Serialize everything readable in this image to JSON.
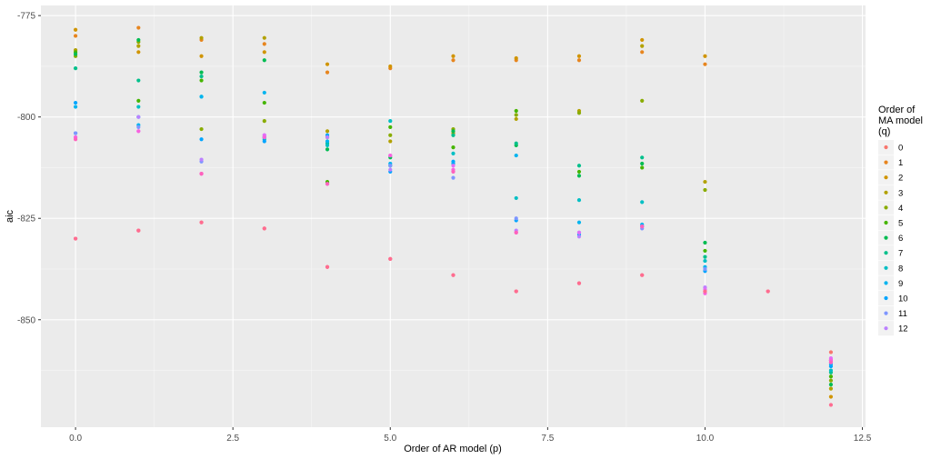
{
  "chart_data": {
    "type": "scatter",
    "title": "",
    "xlabel": "Order of AR model (p)",
    "ylabel": "aic",
    "xlim": [
      -0.55,
      12.55
    ],
    "ylim": [
      -876.5,
      -772.5
    ],
    "x_ticks": [
      0.0,
      2.5,
      5.0,
      7.5,
      10.0,
      12.5
    ],
    "x_tick_labels": [
      "0.0",
      "2.5",
      "5.0",
      "7.5",
      "10.0",
      "12.5"
    ],
    "y_ticks": [
      -775,
      -800,
      -825,
      -850
    ],
    "y_tick_labels": [
      "-775",
      "-800",
      "-825",
      "-850"
    ],
    "grid": true,
    "legend": {
      "title_lines": [
        "Order of",
        "MA model",
        "(q)"
      ],
      "position": "right"
    },
    "series": [
      {
        "name": "0",
        "color": "#F8766D",
        "points": [
          [
            0,
            -830
          ],
          [
            1,
            -828
          ],
          [
            2,
            -826
          ],
          [
            3,
            -827.5
          ],
          [
            4,
            -837
          ],
          [
            5,
            -835
          ],
          [
            6,
            -839
          ],
          [
            7,
            -843
          ],
          [
            8,
            -841
          ],
          [
            9,
            -839
          ],
          [
            10,
            -843
          ],
          [
            11,
            -843
          ],
          [
            12,
            -858
          ]
        ]
      },
      {
        "name": "1",
        "color": "#E7851E",
        "points": [
          [
            0,
            -780
          ],
          [
            1,
            -778
          ],
          [
            2,
            -781
          ],
          [
            3,
            -782
          ],
          [
            4,
            -789
          ],
          [
            5,
            -788
          ],
          [
            6,
            -786
          ],
          [
            7,
            -786
          ],
          [
            8,
            -786
          ],
          [
            9,
            -784
          ],
          [
            10,
            -787
          ],
          [
            12,
            -860
          ]
        ]
      },
      {
        "name": "2",
        "color": "#D09400",
        "points": [
          [
            0,
            -778.5
          ],
          [
            1,
            -784
          ],
          [
            2,
            -785
          ],
          [
            3,
            -784
          ],
          [
            4,
            -787
          ],
          [
            5,
            -787.5
          ],
          [
            6,
            -785
          ],
          [
            7,
            -785.5
          ],
          [
            8,
            -785
          ],
          [
            9,
            -781
          ],
          [
            10,
            -785
          ],
          [
            12,
            -869
          ]
        ]
      },
      {
        "name": "3",
        "color": "#B2A100",
        "points": [
          [
            0,
            -783.5
          ],
          [
            1,
            -782.5
          ],
          [
            2,
            -780.5
          ],
          [
            3,
            -780.5
          ],
          [
            4,
            -803.5
          ],
          [
            5,
            -806
          ],
          [
            6,
            -804
          ],
          [
            7,
            -800.5
          ],
          [
            8,
            -798.5
          ],
          [
            9,
            -782.5
          ],
          [
            10,
            -816
          ],
          [
            12,
            -867
          ]
        ]
      },
      {
        "name": "4",
        "color": "#89AC00",
        "points": [
          [
            0,
            -785
          ],
          [
            1,
            -781.5
          ],
          [
            2,
            -803
          ],
          [
            3,
            -801
          ],
          [
            4,
            -805
          ],
          [
            5,
            -804.5
          ],
          [
            6,
            -803
          ],
          [
            7,
            -799.5
          ],
          [
            8,
            -799
          ],
          [
            9,
            -796
          ],
          [
            10,
            -818
          ],
          [
            12,
            -865
          ]
        ]
      },
      {
        "name": "5",
        "color": "#45B500",
        "points": [
          [
            0,
            -784
          ],
          [
            1,
            -796
          ],
          [
            2,
            -791
          ],
          [
            3,
            -796.5
          ],
          [
            4,
            -816
          ],
          [
            5,
            -802.5
          ],
          [
            6,
            -807.5
          ],
          [
            7,
            -798.5
          ],
          [
            8,
            -813.5
          ],
          [
            9,
            -812.5
          ],
          [
            10,
            -833
          ],
          [
            12,
            -864
          ]
        ]
      },
      {
        "name": "6",
        "color": "#00BC51",
        "points": [
          [
            0,
            -784.5
          ],
          [
            1,
            -781
          ],
          [
            2,
            -789
          ],
          [
            3,
            -786
          ],
          [
            4,
            -808
          ],
          [
            5,
            -810
          ],
          [
            6,
            -803.5
          ],
          [
            7,
            -807
          ],
          [
            8,
            -814.5
          ],
          [
            9,
            -811.5
          ],
          [
            10,
            -831
          ],
          [
            12,
            -866
          ]
        ]
      },
      {
        "name": "7",
        "color": "#00C08B",
        "points": [
          [
            0,
            -788
          ],
          [
            1,
            -791
          ],
          [
            2,
            -790
          ],
          [
            3,
            -805
          ],
          [
            4,
            -806.5
          ],
          [
            5,
            -812
          ],
          [
            6,
            -804.5
          ],
          [
            7,
            -806.5
          ],
          [
            8,
            -812
          ],
          [
            9,
            -810
          ],
          [
            10,
            -834.5
          ],
          [
            12,
            -863
          ]
        ]
      },
      {
        "name": "8",
        "color": "#00BFC4",
        "points": [
          [
            0,
            -804
          ],
          [
            1,
            -797.5
          ],
          [
            2,
            -795
          ],
          [
            3,
            -805.5
          ],
          [
            4,
            -807
          ],
          [
            5,
            -801
          ],
          [
            6,
            -809
          ],
          [
            7,
            -820
          ],
          [
            8,
            -820.5
          ],
          [
            9,
            -821
          ],
          [
            10,
            -835.5
          ],
          [
            12,
            -862.5
          ]
        ]
      },
      {
        "name": "9",
        "color": "#00B4EF",
        "points": [
          [
            0,
            -797.5
          ],
          [
            1,
            -802
          ],
          [
            2,
            -795
          ],
          [
            3,
            -794
          ],
          [
            4,
            -806
          ],
          [
            5,
            -811.5
          ],
          [
            6,
            -811.5
          ],
          [
            7,
            -809.5
          ],
          [
            8,
            -826
          ],
          [
            9,
            -826.5
          ],
          [
            10,
            -837
          ],
          [
            12,
            -861
          ]
        ]
      },
      {
        "name": "10",
        "color": "#00A5FF",
        "points": [
          [
            0,
            -796.5
          ],
          [
            1,
            -800
          ],
          [
            2,
            -805.5
          ],
          [
            3,
            -806
          ],
          [
            4,
            -804.5
          ],
          [
            5,
            -813.5
          ],
          [
            6,
            -811
          ],
          [
            7,
            -825.5
          ],
          [
            8,
            -829
          ],
          [
            9,
            -827
          ],
          [
            10,
            -838
          ],
          [
            12,
            -861.5
          ]
        ]
      },
      {
        "name": "11",
        "color": "#7F96FF",
        "points": [
          [
            0,
            -804
          ],
          [
            1,
            -802.5
          ],
          [
            2,
            -811
          ],
          [
            3,
            -805
          ],
          [
            4,
            -816.5
          ],
          [
            5,
            -812
          ],
          [
            6,
            -815
          ],
          [
            7,
            -825
          ],
          [
            8,
            -828.5
          ],
          [
            9,
            -827.5
          ],
          [
            10,
            -837.5
          ],
          [
            12,
            -860
          ]
        ]
      },
      {
        "name": "12",
        "color": "#BC81FF",
        "points": [
          [
            0,
            -805
          ],
          [
            1,
            -800
          ],
          [
            2,
            -810.5
          ],
          [
            3,
            -804.5
          ],
          [
            4,
            -805
          ],
          [
            5,
            -813
          ],
          [
            6,
            -813.5
          ],
          [
            7,
            -828
          ],
          [
            8,
            -829.5
          ],
          [
            9,
            -827
          ],
          [
            10,
            -842
          ],
          [
            12,
            -860.5
          ]
        ]
      },
      {
        "name": "",
        "color": "#E26EF7",
        "points": [
          [
            1,
            -803.5
          ],
          [
            2,
            -814
          ],
          [
            3,
            -804.5
          ],
          [
            4,
            -816.5
          ],
          [
            5,
            -809.5
          ],
          [
            6,
            -812
          ],
          [
            8,
            -828.5
          ],
          [
            10,
            -842.5
          ],
          [
            12,
            -859.5
          ]
        ]
      },
      {
        "name": "",
        "color": "#F863DF",
        "points": [
          [
            0,
            -805
          ],
          [
            1,
            -803.5
          ],
          [
            2,
            -814
          ],
          [
            3,
            -805
          ],
          [
            5,
            -809.5
          ],
          [
            6,
            -813
          ],
          [
            7,
            -828.5
          ],
          [
            10,
            -843.5
          ],
          [
            12,
            -860
          ]
        ]
      },
      {
        "name": "",
        "color": "#FF62BC",
        "points": [
          [
            0,
            -805.5
          ],
          [
            2,
            -814
          ],
          [
            4,
            -816.5
          ],
          [
            6,
            -813.5
          ],
          [
            7,
            -828.5
          ],
          [
            9,
            -827
          ],
          [
            12,
            -860.5
          ]
        ]
      },
      {
        "name": "",
        "color": "#FF6C91",
        "points": [
          [
            0,
            -830
          ],
          [
            1,
            -828
          ],
          [
            2,
            -826
          ],
          [
            3,
            -827.5
          ],
          [
            4,
            -837
          ],
          [
            5,
            -835
          ],
          [
            6,
            -839
          ],
          [
            7,
            -843
          ],
          [
            8,
            -841
          ],
          [
            9,
            -839
          ],
          [
            10,
            -843
          ],
          [
            11,
            -843
          ],
          [
            12,
            -871
          ]
        ]
      }
    ]
  }
}
